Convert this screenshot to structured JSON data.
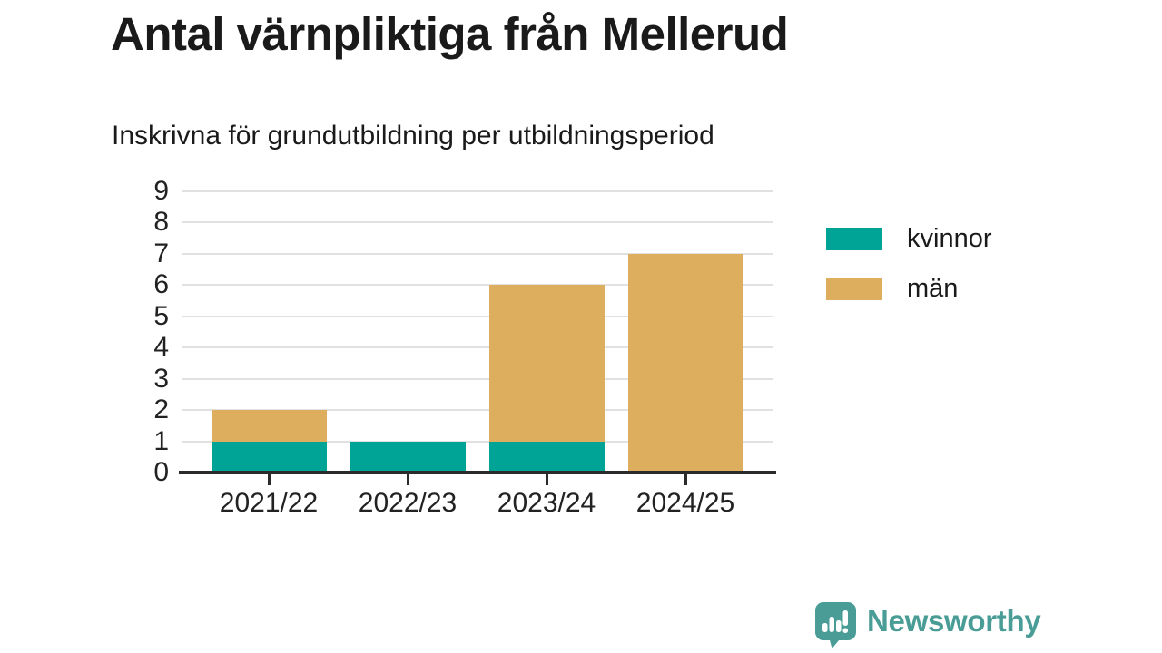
{
  "chart_data": {
    "type": "bar",
    "stacked": true,
    "title": "Antal värnpliktiga från Mellerud",
    "subtitle": "Inskrivna för grundutbildning per utbildningsperiod",
    "categories": [
      "2021/22",
      "2022/23",
      "2023/24",
      "2024/25"
    ],
    "series": [
      {
        "name": "kvinnor",
        "color": "#00a497",
        "values": [
          1,
          1,
          1,
          0
        ]
      },
      {
        "name": "män",
        "color": "#dcae5e",
        "values": [
          1,
          0,
          5,
          7
        ]
      }
    ],
    "totals": [
      2,
      1,
      6,
      7
    ],
    "xlabel": "",
    "ylabel": "",
    "ylim": [
      0,
      9
    ],
    "yticks": [
      0,
      1,
      2,
      3,
      4,
      5,
      6,
      7,
      8,
      9
    ],
    "grid": "horizontal",
    "legend_position": "right"
  },
  "footer": {
    "brand": "Newsworthy"
  },
  "colors": {
    "axis": "#2b2b2b",
    "grid": "#e1e1e1",
    "text": "#1a1a1a",
    "brand_teal": "#4a9d96"
  }
}
